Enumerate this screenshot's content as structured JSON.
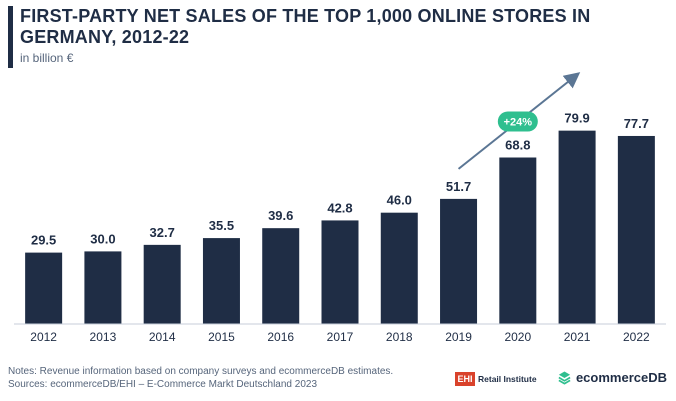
{
  "chart_data": {
    "type": "bar",
    "title": "FIRST-PARTY NET SALES OF THE TOP 1,000 ONLINE STORES IN GERMANY, 2012-22",
    "subtitle": "in billion €",
    "categories": [
      "2012",
      "2013",
      "2014",
      "2015",
      "2016",
      "2017",
      "2018",
      "2019",
      "2020",
      "2021",
      "2022"
    ],
    "values": [
      29.5,
      30.0,
      32.7,
      35.5,
      39.6,
      42.8,
      46.0,
      51.7,
      68.8,
      79.9,
      77.7
    ],
    "value_labels": [
      "29.5",
      "30.0",
      "32.7",
      "35.5",
      "39.6",
      "42.8",
      "46.0",
      "51.7",
      "68.8",
      "79.9",
      "77.7"
    ],
    "xlabel": "",
    "ylabel": "",
    "ylim": [
      0,
      100
    ],
    "grid": false,
    "annotation": {
      "text": "+24%",
      "from_category": "2019",
      "to_category": "2021"
    },
    "colors": {
      "bar": "#1f2d45",
      "label": "#1f2d45",
      "annotation": "#2fbf8f",
      "arrow": "#5b7694"
    }
  },
  "footer": {
    "notes": "Notes: Revenue information based on company surveys and ecommerceDB estimates.",
    "sources": "Sources: ecommerceDB/EHI – E-Commerce Markt Deutschland 2023"
  },
  "logos": {
    "ehi_mark": "EHI",
    "ehi_text": "Retail Institute",
    "ecdb_text": "ecommerceDB",
    "ecdb_icon": "stacked-diamond-icon"
  }
}
